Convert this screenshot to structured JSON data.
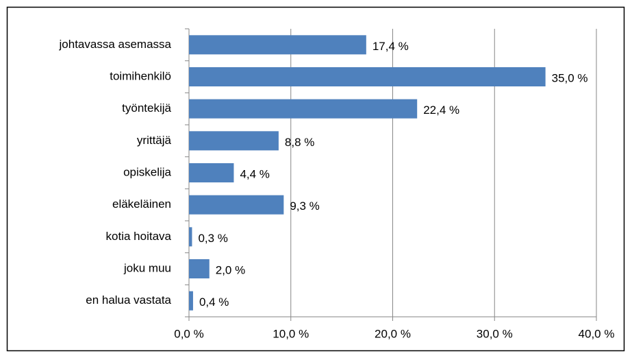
{
  "chart_data": {
    "type": "bar",
    "orientation": "horizontal",
    "categories": [
      "johtavassa asemassa",
      "toimihenkilö",
      "työntekijä",
      "yrittäjä",
      "opiskelija",
      "eläkeläinen",
      "kotia hoitava",
      "joku muu",
      "en halua vastata"
    ],
    "values": [
      17.4,
      35.0,
      22.4,
      8.8,
      4.4,
      9.3,
      0.3,
      2.0,
      0.4
    ],
    "value_labels": [
      "17,4 %",
      "35,0 %",
      "22,4 %",
      "8,8 %",
      "4,4 %",
      "9,3 %",
      "0,3 %",
      "2,0 %",
      "0,4 %"
    ],
    "color": "#4f81bd",
    "xlim": [
      0,
      40
    ],
    "xticks": [
      {
        "value": 0,
        "label": "0,0 %"
      },
      {
        "value": 10,
        "label": "10,0 %"
      },
      {
        "value": 20,
        "label": "20,0 %"
      },
      {
        "value": 30,
        "label": "30,0 %"
      },
      {
        "value": 40,
        "label": "40,0 %"
      }
    ],
    "grid": true
  }
}
